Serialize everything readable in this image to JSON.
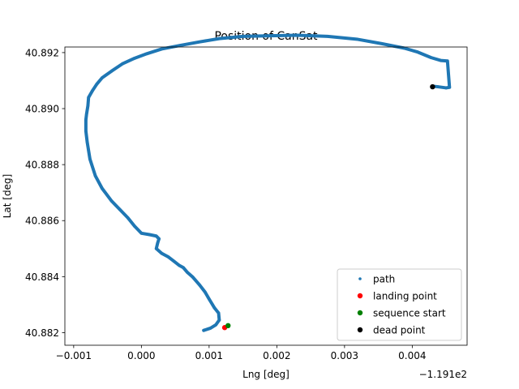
{
  "chart_data": {
    "type": "scatter",
    "title": "Position of CanSat",
    "xlabel": "Lng [deg]",
    "ylabel": "Lat [deg]",
    "x_offset_label": "−1.191e2",
    "x_ticks": [
      {
        "value": -0.001,
        "label": "−0.001"
      },
      {
        "value": 0.0,
        "label": "0.000"
      },
      {
        "value": 0.001,
        "label": "0.001"
      },
      {
        "value": 0.002,
        "label": "0.002"
      },
      {
        "value": 0.003,
        "label": "0.003"
      },
      {
        "value": 0.004,
        "label": "0.004"
      }
    ],
    "y_ticks": [
      {
        "value": 40.882,
        "label": "40.882"
      },
      {
        "value": 40.884,
        "label": "40.884"
      },
      {
        "value": 40.886,
        "label": "40.886"
      },
      {
        "value": 40.888,
        "label": "40.888"
      },
      {
        "value": 40.89,
        "label": "40.890"
      },
      {
        "value": 40.892,
        "label": "40.892"
      }
    ],
    "xlim": [
      -0.00113,
      0.00481
    ],
    "ylim": [
      40.88155,
      40.8922
    ],
    "grid": false,
    "legend_position": "lower-right",
    "series": [
      {
        "name": "path",
        "color": "#1f77b4",
        "marker": "small-dot",
        "x": [
          0.00092,
          0.00102,
          0.0011,
          0.00115,
          0.00114,
          0.00108,
          0.00105,
          0.001,
          0.00094,
          0.00086,
          0.00076,
          0.00068,
          0.00062,
          0.00056,
          0.00048,
          0.0004,
          0.0003,
          0.00022,
          0.00024,
          0.00026,
          0.00022,
          0.00012,
          0.0,
          -0.0001,
          -0.0002,
          -0.00032,
          -0.00044,
          -0.00058,
          -0.00068,
          -0.00076,
          -0.0008,
          -0.00082,
          -0.00082,
          -0.00081,
          -0.00079,
          -0.00078,
          -0.00072,
          -0.00066,
          -0.00058,
          -0.00044,
          -0.00028,
          -0.0001,
          8e-05,
          0.0003,
          0.00058,
          0.00085,
          0.00115,
          0.0015,
          0.0019,
          0.0023,
          0.00275,
          0.00318,
          0.00355,
          0.00388,
          0.00408,
          0.00428,
          0.00442,
          0.00452,
          0.00455,
          0.0045,
          0.00438,
          0.0043
        ],
        "y": [
          40.88208,
          40.88216,
          40.88228,
          40.88245,
          40.8827,
          40.88288,
          40.883,
          40.8832,
          40.88345,
          40.8837,
          40.88398,
          40.88415,
          40.88432,
          40.8844,
          40.88455,
          40.8847,
          40.88483,
          40.885,
          40.8852,
          40.88535,
          40.88545,
          40.8855,
          40.88555,
          40.8858,
          40.8861,
          40.8864,
          40.8867,
          40.88715,
          40.8876,
          40.8882,
          40.8888,
          40.8892,
          40.8896,
          40.8898,
          40.8901,
          40.8904,
          40.89065,
          40.89087,
          40.8911,
          40.89134,
          40.8916,
          40.8918,
          40.89196,
          40.89213,
          40.89226,
          40.89238,
          40.8925,
          40.89258,
          40.8926,
          40.89262,
          40.89258,
          40.89248,
          40.89232,
          40.89216,
          40.89202,
          40.89182,
          40.89172,
          40.8917,
          40.89076,
          40.89074,
          40.89078,
          40.8908
        ]
      },
      {
        "name": "landing point",
        "color": "#ff0000",
        "x": [
          0.00123
        ],
        "y": [
          40.88218
        ]
      },
      {
        "name": "sequence start",
        "color": "#008000",
        "x": [
          0.00128
        ],
        "y": [
          40.88225
        ]
      },
      {
        "name": "dead point",
        "color": "#000000",
        "x": [
          0.0043
        ],
        "y": [
          40.89078
        ]
      }
    ]
  }
}
